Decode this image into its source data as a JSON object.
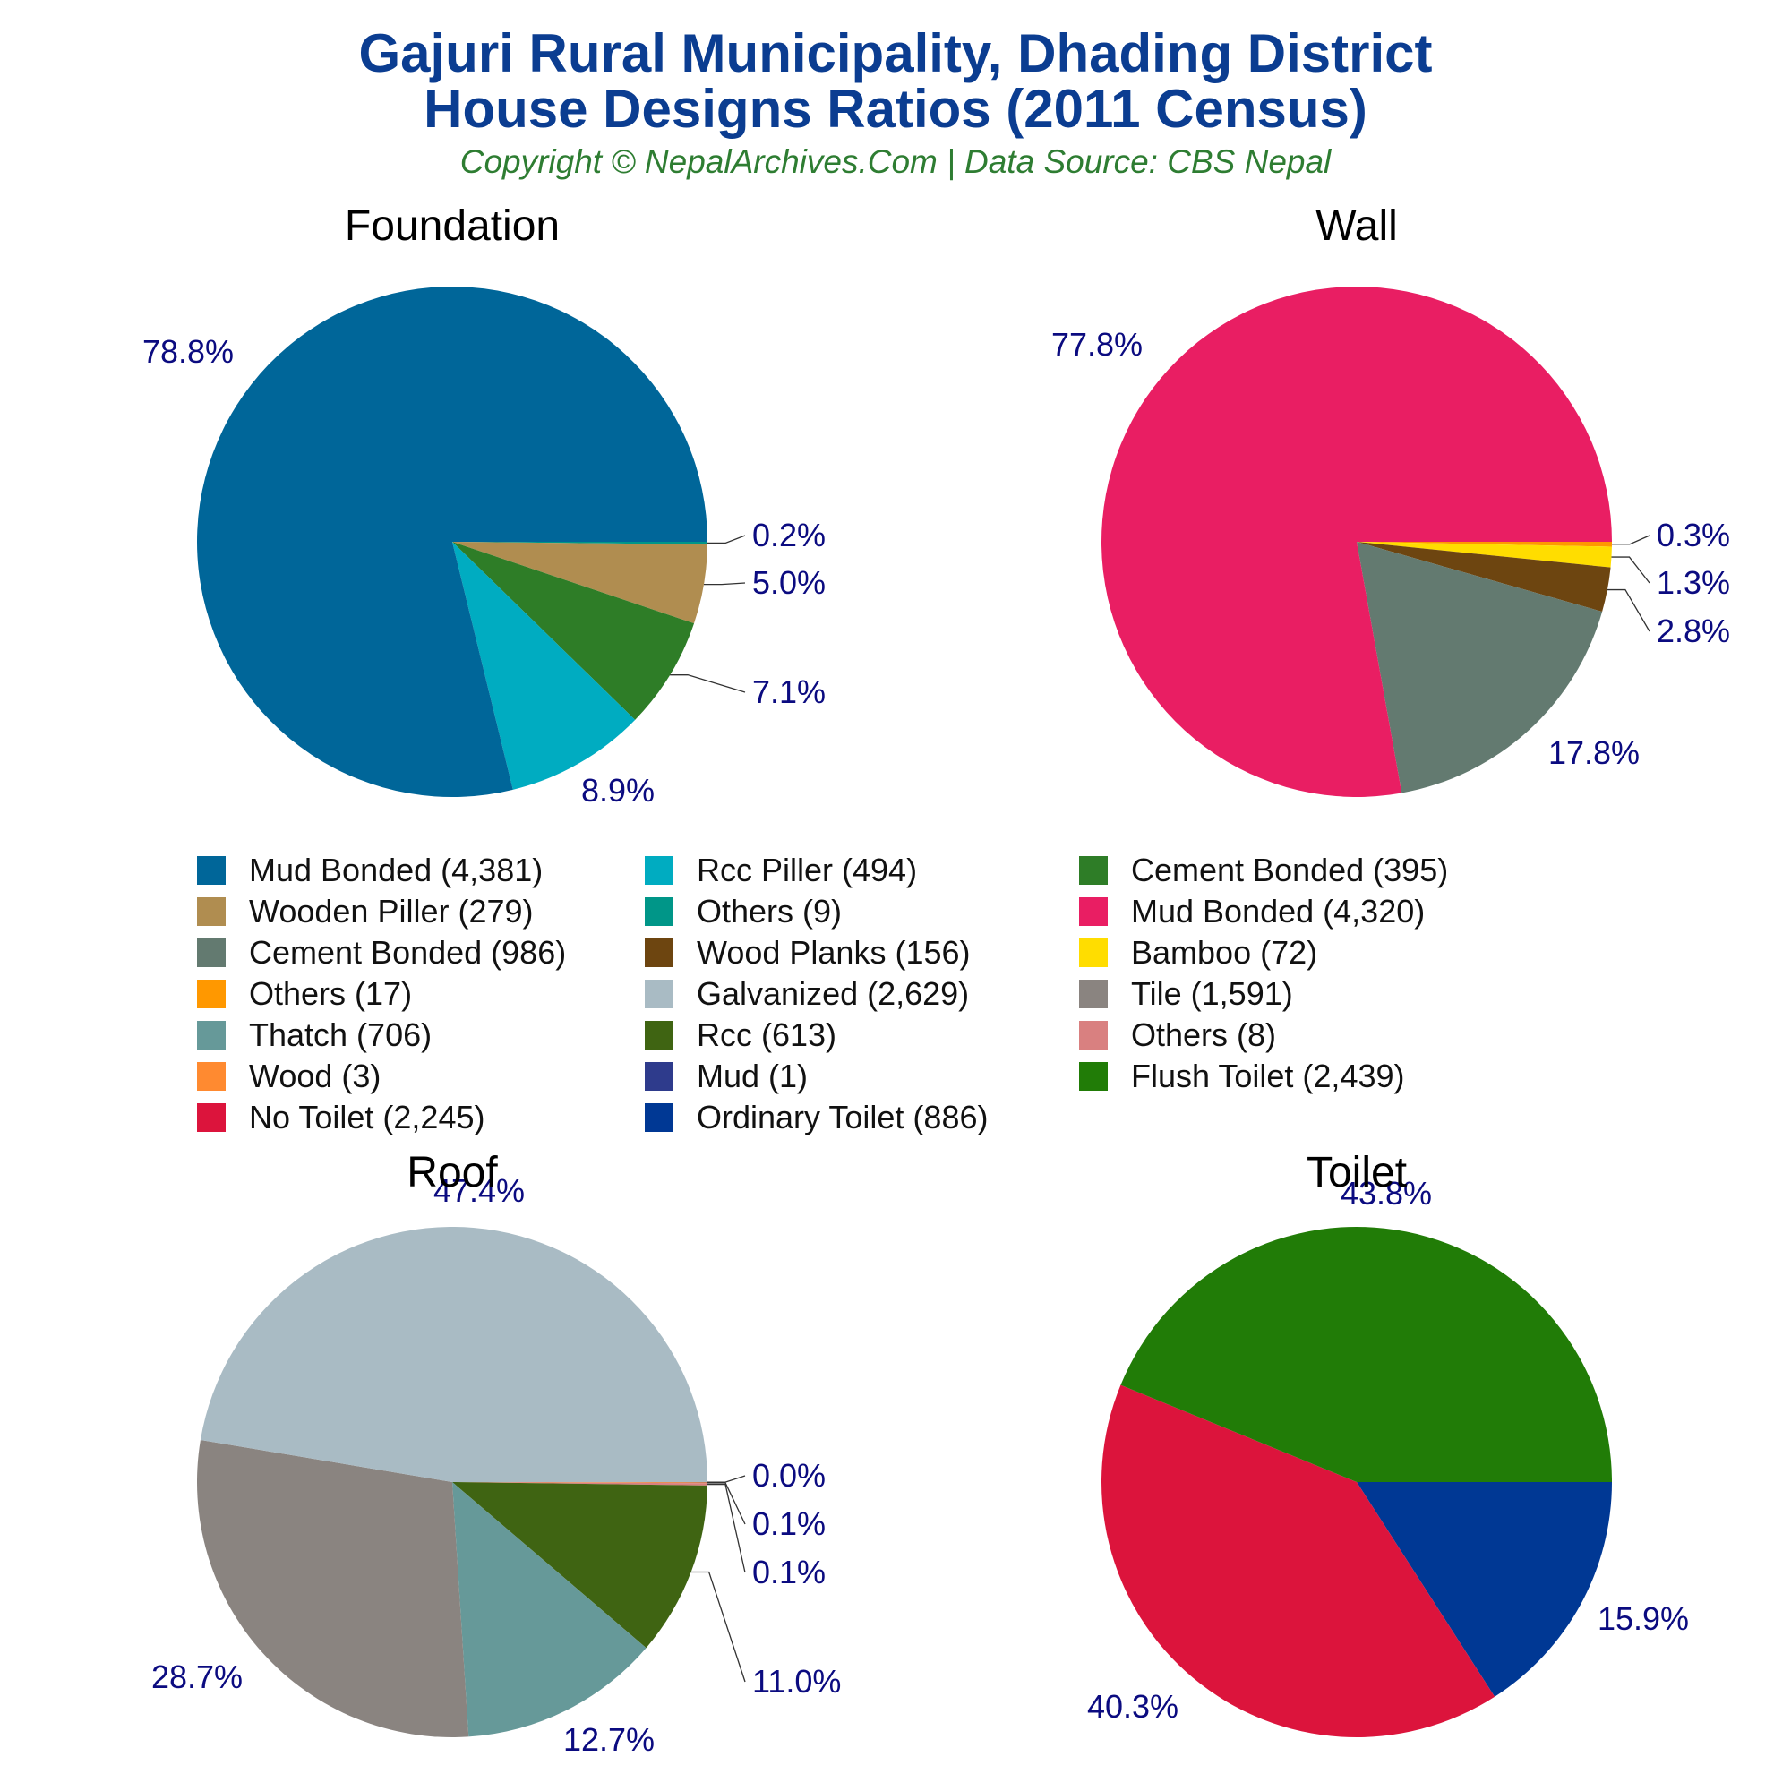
{
  "header": {
    "title_line1": "Gajuri Rural Municipality, Dhading District",
    "title_line2": "House Designs Ratios (2011 Census)",
    "subtitle": "Copyright © NepalArchives.Com | Data Source: CBS Nepal"
  },
  "chart_data": [
    {
      "type": "pie",
      "title": "Foundation",
      "slices": [
        {
          "label": "Others",
          "value": 9,
          "percent": "0.2%",
          "color": "#009688"
        },
        {
          "label": "Wooden Piller",
          "value": 279,
          "percent": "5.0%",
          "color": "#b08d50"
        },
        {
          "label": "Cement Bonded",
          "value": 395,
          "percent": "7.1%",
          "color": "#2e7d27"
        },
        {
          "label": "Rcc Piller",
          "value": 494,
          "percent": "8.9%",
          "color": "#00acc1"
        },
        {
          "label": "Mud Bonded",
          "value": 4381,
          "percent": "78.8%",
          "color": "#006699"
        }
      ]
    },
    {
      "type": "pie",
      "title": "Wall",
      "slices": [
        {
          "label": "Others",
          "value": 17,
          "percent": "0.3%",
          "color": "#ff9800"
        },
        {
          "label": "Bamboo",
          "value": 72,
          "percent": "1.3%",
          "color": "#ffdd00"
        },
        {
          "label": "Wood Planks",
          "value": 156,
          "percent": "2.8%",
          "color": "#6d4510"
        },
        {
          "label": "Cement Bonded",
          "value": 986,
          "percent": "17.8%",
          "color": "#637a70"
        },
        {
          "label": "Mud Bonded",
          "value": 4320,
          "percent": "77.8%",
          "color": "#e91e63"
        }
      ]
    },
    {
      "type": "pie",
      "title": "Roof",
      "slices": [
        {
          "label": "Mud",
          "value": 1,
          "percent": "0.0%",
          "color": "#2e3b8c"
        },
        {
          "label": "Wood",
          "value": 3,
          "percent": "0.1%",
          "color": "#ff8a30"
        },
        {
          "label": "Others",
          "value": 8,
          "percent": "0.1%",
          "color": "#d98080"
        },
        {
          "label": "Rcc",
          "value": 613,
          "percent": "11.0%",
          "color": "#3f6412"
        },
        {
          "label": "Thatch",
          "value": 706,
          "percent": "12.7%",
          "color": "#669999"
        },
        {
          "label": "Tile",
          "value": 1591,
          "percent": "28.7%",
          "color": "#8a8480"
        },
        {
          "label": "Galvanized",
          "value": 2629,
          "percent": "47.4%",
          "color": "#a9bbc4"
        }
      ]
    },
    {
      "type": "pie",
      "title": "Toilet",
      "slices": [
        {
          "label": "Ordinary Toilet",
          "value": 886,
          "percent": "15.9%",
          "color": "#003894"
        },
        {
          "label": "No Toilet",
          "value": 2245,
          "percent": "40.3%",
          "color": "#dc143c"
        },
        {
          "label": "Flush Toilet",
          "value": 2439,
          "percent": "43.8%",
          "color": "#217c07"
        }
      ]
    }
  ],
  "legend": [
    {
      "text": "Mud Bonded (4,381)",
      "color": "#006699"
    },
    {
      "text": "Rcc Piller (494)",
      "color": "#00acc1"
    },
    {
      "text": "Cement Bonded (395)",
      "color": "#2e7d27"
    },
    {
      "text": "Wooden Piller (279)",
      "color": "#b08d50"
    },
    {
      "text": "Others (9)",
      "color": "#009688"
    },
    {
      "text": "Mud Bonded (4,320)",
      "color": "#e91e63"
    },
    {
      "text": "Cement Bonded (986)",
      "color": "#637a70"
    },
    {
      "text": "Wood Planks (156)",
      "color": "#6d4510"
    },
    {
      "text": "Bamboo (72)",
      "color": "#ffdd00"
    },
    {
      "text": "Others (17)",
      "color": "#ff9800"
    },
    {
      "text": "Galvanized (2,629)",
      "color": "#a9bbc4"
    },
    {
      "text": "Tile (1,591)",
      "color": "#8a8480"
    },
    {
      "text": "Thatch (706)",
      "color": "#669999"
    },
    {
      "text": "Rcc (613)",
      "color": "#3f6412"
    },
    {
      "text": "Others (8)",
      "color": "#d98080"
    },
    {
      "text": "Wood (3)",
      "color": "#ff8a30"
    },
    {
      "text": "Mud (1)",
      "color": "#2e3b8c"
    },
    {
      "text": "Flush Toilet (2,439)",
      "color": "#217c07"
    },
    {
      "text": "No Toilet (2,245)",
      "color": "#dc143c"
    },
    {
      "text": "Ordinary Toilet (886)",
      "color": "#003894"
    }
  ],
  "styles": {
    "label_color": "#0b0b80",
    "title_color": "#0b3d91",
    "subtitle_color": "#2e7d32"
  }
}
